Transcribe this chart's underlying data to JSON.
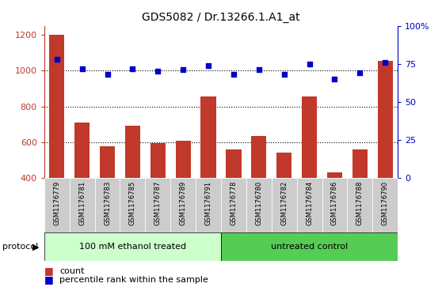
{
  "title": "GDS5082 / Dr.13266.1.A1_at",
  "samples": [
    "GSM1176779",
    "GSM1176781",
    "GSM1176783",
    "GSM1176785",
    "GSM1176787",
    "GSM1176789",
    "GSM1176791",
    "GSM1176778",
    "GSM1176780",
    "GSM1176782",
    "GSM1176784",
    "GSM1176786",
    "GSM1176788",
    "GSM1176790"
  ],
  "counts": [
    1200,
    710,
    575,
    690,
    595,
    610,
    855,
    558,
    635,
    540,
    855,
    430,
    558,
    1055
  ],
  "percentiles": [
    78,
    72,
    68,
    72,
    70,
    71,
    74,
    68,
    71,
    68,
    75,
    65,
    69,
    76
  ],
  "group1_label": "100 mM ethanol treated",
  "group2_label": "untreated control",
  "group1_count": 7,
  "group2_count": 7,
  "ylim_left": [
    400,
    1250
  ],
  "ylim_right": [
    0,
    100
  ],
  "yticks_left": [
    400,
    600,
    800,
    1000,
    1200
  ],
  "yticks_right": [
    0,
    25,
    50,
    75,
    100
  ],
  "yticklabels_right": [
    "0",
    "25",
    "50",
    "75",
    "100%"
  ],
  "bar_color": "#C0392B",
  "dot_color": "#0000CC",
  "group1_bg": "#CCFFCC",
  "group2_bg": "#55CC55",
  "tick_area_bg": "#CCCCCC",
  "protocol_label": "protocol",
  "legend_count_label": "count",
  "legend_pct_label": "percentile rank within the sample",
  "gridline_vals": [
    600,
    800,
    1000
  ],
  "bar_bottom": 400
}
